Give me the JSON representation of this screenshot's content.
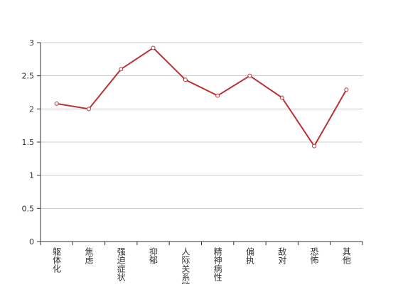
{
  "chart_data": {
    "type": "line",
    "categories": [
      "躯体化",
      "焦虑",
      "强迫症状",
      "抑郁",
      "人际关系敏感",
      "精神病性",
      "偏执",
      "敌对",
      "恐怖",
      "其他"
    ],
    "series": [
      {
        "name": null,
        "color": "#b83232",
        "values": [
          2.08,
          2.0,
          2.6,
          2.92,
          2.44,
          2.2,
          2.5,
          2.17,
          1.44,
          2.29
        ]
      }
    ],
    "ylim": [
      0,
      3
    ],
    "yticks": [
      0,
      0.5,
      1,
      1.5,
      2,
      2.5,
      3
    ],
    "grid": true
  }
}
